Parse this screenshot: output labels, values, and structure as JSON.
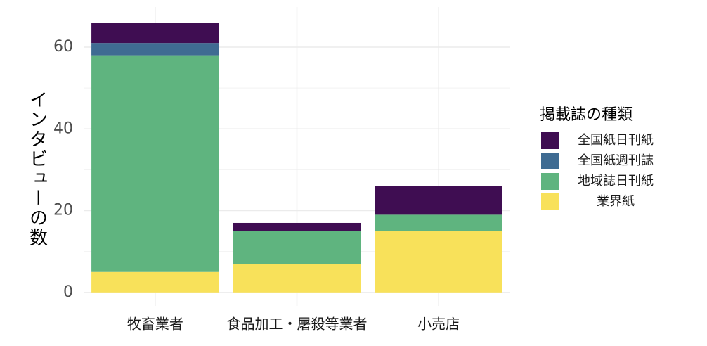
{
  "chart_data": {
    "type": "stacked_bar",
    "categories": [
      "牧畜業者",
      "食品加工・屠殺等業者",
      "小売店"
    ],
    "series": [
      {
        "name": "業界紙",
        "color": "#f8e15a",
        "values": [
          5,
          7,
          15
        ]
      },
      {
        "name": "地域誌日刊紙",
        "color": "#5fb47f",
        "values": [
          53,
          8,
          4
        ]
      },
      {
        "name": "全国紙週刊誌",
        "color": "#3f6b92",
        "values": [
          3,
          0,
          0
        ]
      },
      {
        "name": "全国紙日刊紙",
        "color": "#3f0d52",
        "values": [
          5,
          2,
          7
        ]
      }
    ],
    "ylabel": "インタビューの数",
    "legend_title": "掲載誌の種類",
    "ylim": [
      -3.3,
      69.8
    ],
    "yticks": [
      0,
      20,
      40,
      60
    ],
    "grid": true
  }
}
